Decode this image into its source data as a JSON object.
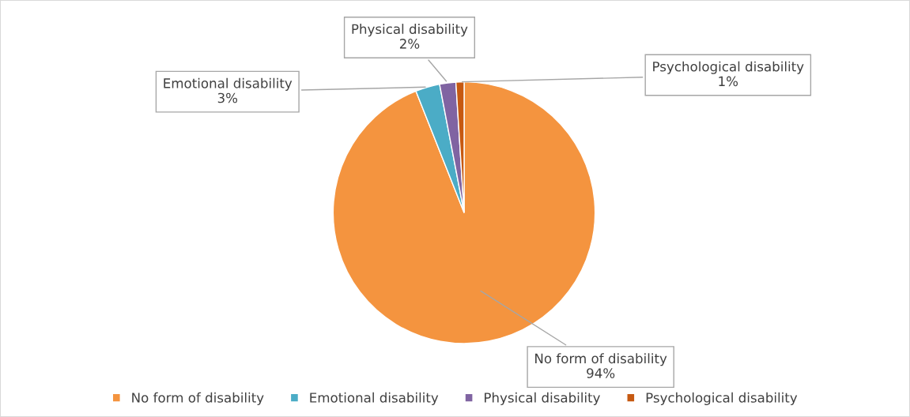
{
  "chart_data": {
    "type": "pie",
    "categories": [
      "No form of disability",
      "Emotional disability",
      "Physical disability",
      "Psychological disability"
    ],
    "values": [
      94,
      3,
      2,
      1
    ],
    "value_labels": [
      "94%",
      "3%",
      "2%",
      "1%"
    ],
    "colors": [
      "#f4943f",
      "#4bacc6",
      "#8064a2",
      "#c65911"
    ],
    "legend": "bottom"
  }
}
